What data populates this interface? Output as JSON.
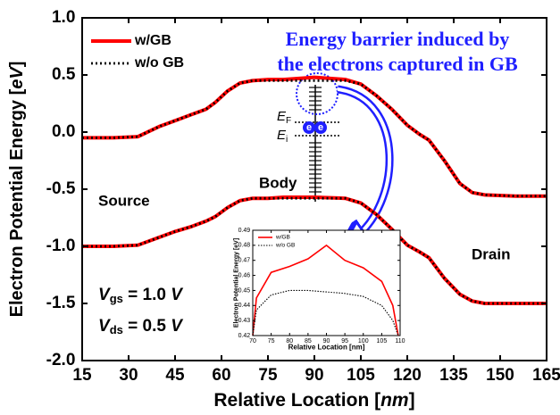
{
  "chart_data": [
    {
      "type": "line",
      "x_label": [
        "Relative Location [",
        "nm",
        "]"
      ],
      "y_label": [
        "Electron Potential Energy [",
        "eV",
        "]"
      ],
      "x": [
        15,
        25,
        33,
        40,
        45,
        50,
        55,
        58,
        62,
        66,
        70,
        75,
        80,
        90,
        100,
        105,
        110,
        115,
        120,
        124,
        127,
        132,
        137,
        141,
        145,
        155,
        165
      ],
      "series": [
        {
          "name": "w/GB",
          "color": "#ff0000",
          "values": [
            -0.05,
            -0.05,
            -0.04,
            0.05,
            0.1,
            0.15,
            0.2,
            0.26,
            0.36,
            0.43,
            0.45,
            0.46,
            0.46,
            0.48,
            0.46,
            0.42,
            0.32,
            0.2,
            0.06,
            -0.02,
            -0.07,
            -0.25,
            -0.45,
            -0.53,
            -0.55,
            -0.56,
            -0.56
          ],
          "lower_values": [
            -1.0,
            -1.0,
            -0.99,
            -0.92,
            -0.87,
            -0.83,
            -0.78,
            -0.74,
            -0.66,
            -0.6,
            -0.58,
            -0.58,
            -0.57,
            -0.57,
            -0.58,
            -0.62,
            -0.72,
            -0.85,
            -0.99,
            -1.05,
            -1.1,
            -1.28,
            -1.42,
            -1.48,
            -1.5,
            -1.5,
            -1.5
          ]
        },
        {
          "name": "w/o GB",
          "color": "#000000",
          "values": [
            -0.05,
            -0.05,
            -0.04,
            0.05,
            0.1,
            0.15,
            0.2,
            0.26,
            0.36,
            0.43,
            0.45,
            0.45,
            0.45,
            0.45,
            0.45,
            0.42,
            0.32,
            0.2,
            0.06,
            -0.02,
            -0.07,
            -0.25,
            -0.45,
            -0.53,
            -0.55,
            -0.56,
            -0.56
          ],
          "lower_values": [
            -1.0,
            -1.0,
            -0.99,
            -0.92,
            -0.87,
            -0.83,
            -0.78,
            -0.74,
            -0.66,
            -0.6,
            -0.58,
            -0.58,
            -0.58,
            -0.58,
            -0.58,
            -0.62,
            -0.72,
            -0.85,
            -0.99,
            -1.05,
            -1.1,
            -1.28,
            -1.42,
            -1.48,
            -1.5,
            -1.5,
            -1.5
          ]
        }
      ],
      "xlim": [
        15,
        165
      ],
      "xticks": [
        15,
        30,
        45,
        60,
        75,
        90,
        105,
        120,
        135,
        150,
        165
      ],
      "ylim": [
        -2,
        1
      ],
      "yticks": [
        {
          "value": -2,
          "label": "-2.0"
        },
        {
          "value": -1.5,
          "label": "-1.5"
        },
        {
          "value": -1,
          "label": "-1.0"
        },
        {
          "value": -0.5,
          "label": "-0.5"
        },
        {
          "value": 0,
          "label": "0.0"
        },
        {
          "value": 0.5,
          "label": "0.5"
        },
        {
          "value": 1,
          "label": "1.0"
        }
      ],
      "legend": "upper left",
      "annotations": {
        "barrier": [
          "Energy barrier induced by",
          "the electrons captured in GB"
        ],
        "source": "Source",
        "body": "Body",
        "drain": "Drain",
        "ef": {
          "main": "E",
          "sub": "F"
        },
        "ei": {
          "main": "E",
          "sub": "i"
        },
        "electron": "e",
        "vgs": {
          "main": "V",
          "sub": "gs",
          "rest": " = 1.0 ",
          "unit": "V"
        },
        "vds": {
          "main": "V",
          "sub": "ds",
          "rest": " = 0.5 ",
          "unit": "V"
        }
      }
    },
    {
      "type": "line",
      "x_label": "Relative Location [nm]",
      "y_label": "Electron Potential Energy [eV]",
      "x": [
        70,
        71,
        75,
        80,
        85,
        90,
        95,
        100,
        105,
        108,
        109.5
      ],
      "series": [
        {
          "name": "w/GB",
          "color": "#ff0000",
          "values": [
            0.42,
            0.445,
            0.462,
            0.466,
            0.471,
            0.48,
            0.47,
            0.465,
            0.456,
            0.44,
            0.42
          ]
        },
        {
          "name": "w/o GB",
          "color": "#000000",
          "values": [
            0.42,
            0.437,
            0.447,
            0.45,
            0.45,
            0.449,
            0.448,
            0.446,
            0.44,
            0.43,
            0.42
          ]
        }
      ],
      "xlim": [
        70,
        110
      ],
      "xticks": [
        70,
        75,
        80,
        85,
        90,
        95,
        100,
        105,
        110
      ],
      "ylim": [
        0.42,
        0.49
      ],
      "yticks": [
        0.42,
        0.43,
        0.44,
        0.45,
        0.46,
        0.47,
        0.48,
        0.49
      ],
      "legend": "upper left"
    }
  ]
}
